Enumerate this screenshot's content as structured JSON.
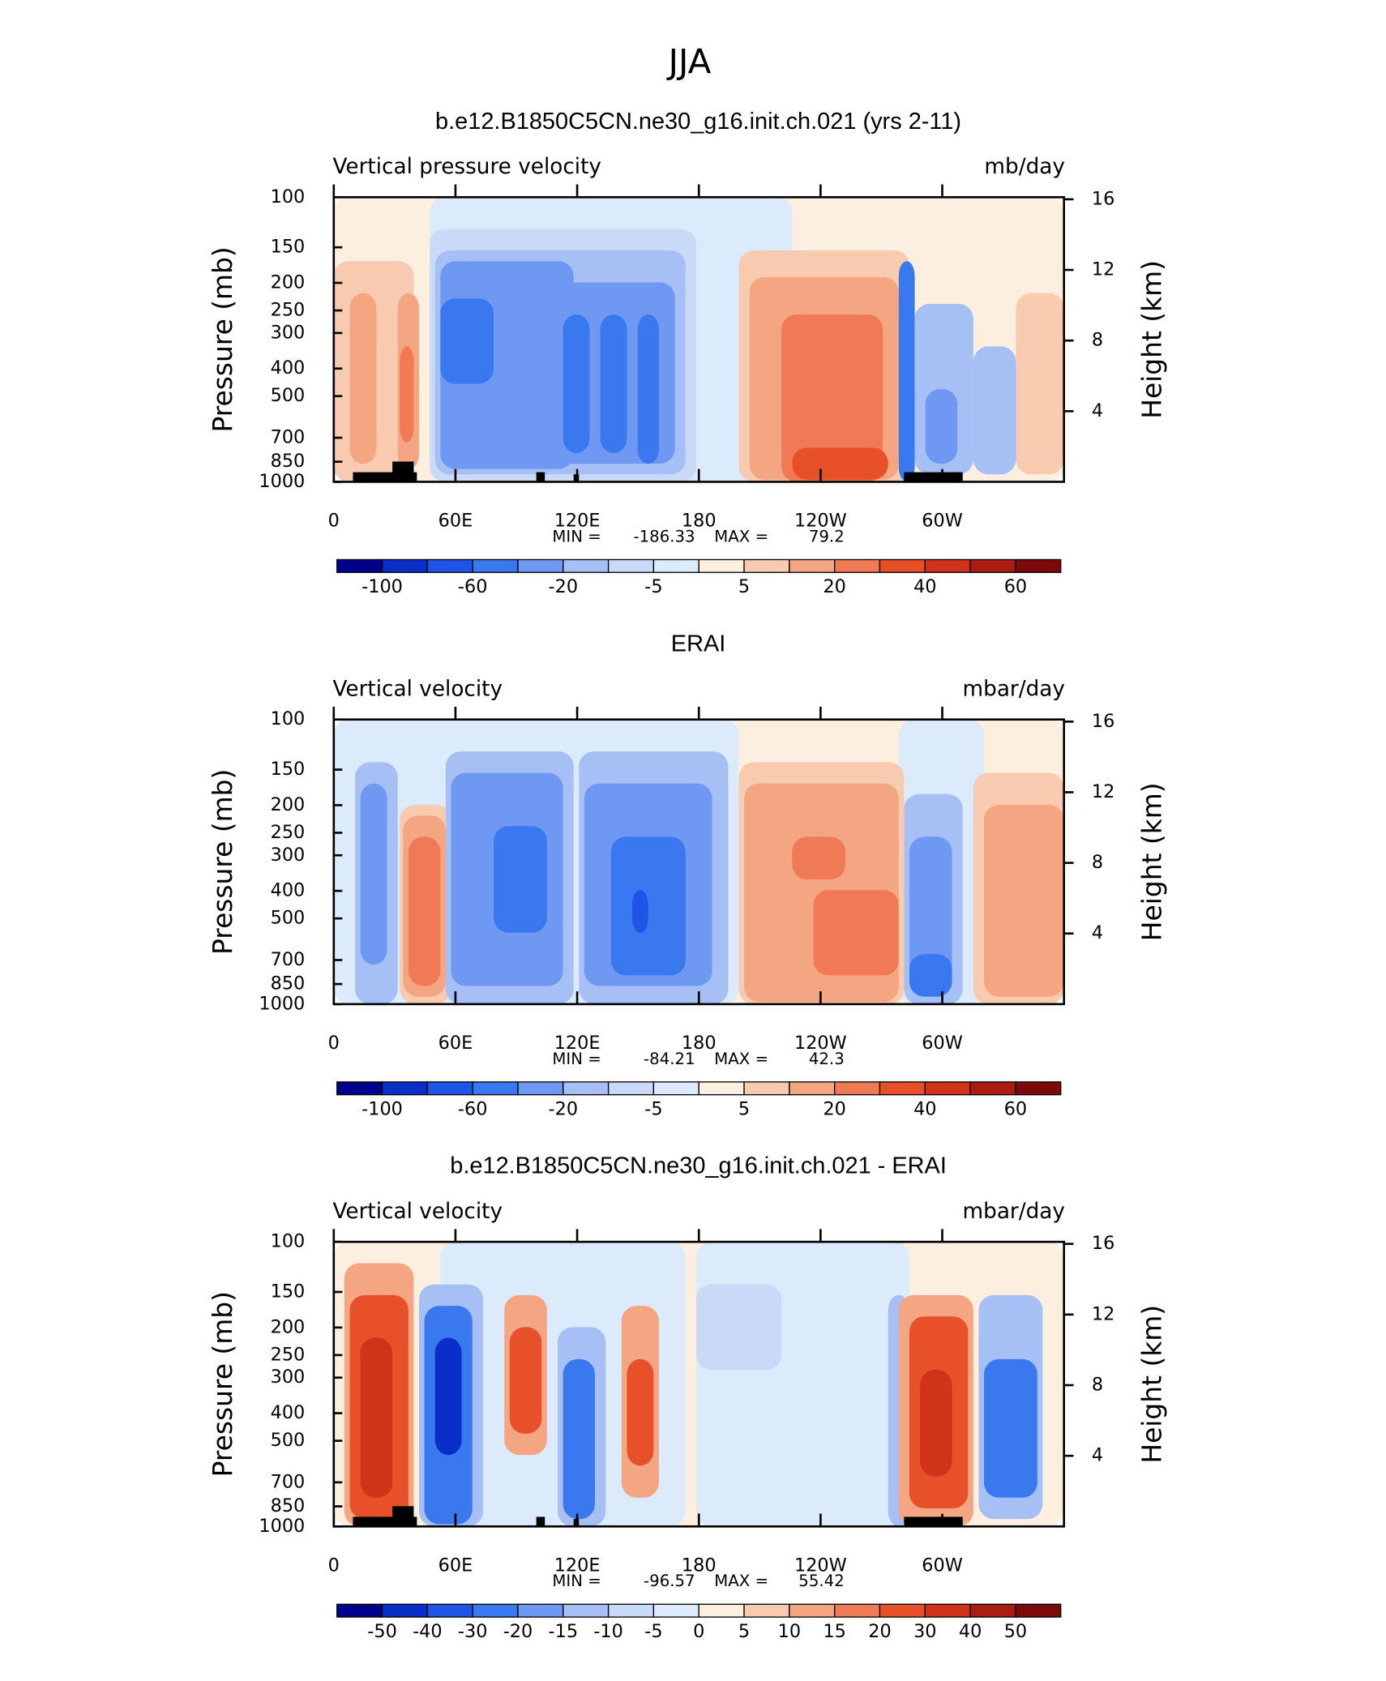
{
  "title": "JJA",
  "chart_data": [
    {
      "type": "contour",
      "subtitle": "b.e12.B1850C5CN.ne30_g16.init.ch.021 (yrs 2-11)",
      "long_name": "Vertical pressure velocity",
      "units": "mb/day",
      "ylabel": "Pressure (mb)",
      "y2label": "Height (km)",
      "xlim": [
        0,
        360
      ],
      "xticks": [
        0,
        {
          "value": 60,
          "label": "60E"
        },
        {
          "value": 120,
          "label": "120E"
        },
        180,
        {
          "value": 240,
          "label": "120W"
        },
        {
          "value": 300,
          "label": "60W"
        }
      ],
      "ylim": [
        1000,
        100
      ],
      "log_y": true,
      "yticks": [
        100,
        150,
        200,
        250,
        300,
        400,
        500,
        700,
        850,
        1000
      ],
      "y2ticks": [
        16,
        12,
        8,
        4
      ],
      "min_label": "MIN =",
      "min": -186.33,
      "max_label": "MAX =",
      "max": 79.2,
      "colorbar": {
        "colors": [
          "#00008c",
          "#0a2ec8",
          "#1f54e6",
          "#3a78f0",
          "#6e98f2",
          "#a6bff5",
          "#c8daf7",
          "#dcebfb",
          "#fdefdf",
          "#f8cbb0",
          "#f4a582",
          "#ef7a55",
          "#e8502a",
          "#d0331a",
          "#ab1d12",
          "#7c0a0a"
        ],
        "labels": [
          -100,
          null,
          -60,
          null,
          -20,
          null,
          -5,
          null,
          5,
          null,
          20,
          null,
          40,
          null,
          60
        ]
      }
    },
    {
      "type": "contour",
      "subtitle": "ERAI",
      "long_name": "Vertical velocity",
      "units": "mbar/day",
      "ylabel": "Pressure (mb)",
      "y2label": "Height (km)",
      "xlim": [
        0,
        360
      ],
      "xticks": [
        0,
        {
          "value": 60,
          "label": "60E"
        },
        {
          "value": 120,
          "label": "120E"
        },
        180,
        {
          "value": 240,
          "label": "120W"
        },
        {
          "value": 300,
          "label": "60W"
        }
      ],
      "ylim": [
        1000,
        100
      ],
      "log_y": true,
      "yticks": [
        100,
        150,
        200,
        250,
        300,
        400,
        500,
        700,
        850,
        1000
      ],
      "y2ticks": [
        16,
        12,
        8,
        4
      ],
      "min_label": "MIN =",
      "min": -84.21,
      "max_label": "MAX =",
      "max": 42.3,
      "colorbar": {
        "colors": [
          "#00008c",
          "#0a2ec8",
          "#1f54e6",
          "#3a78f0",
          "#6e98f2",
          "#a6bff5",
          "#c8daf7",
          "#dcebfb",
          "#fdefdf",
          "#f8cbb0",
          "#f4a582",
          "#ef7a55",
          "#e8502a",
          "#d0331a",
          "#ab1d12",
          "#7c0a0a"
        ],
        "labels": [
          -100,
          null,
          -60,
          null,
          -20,
          null,
          -5,
          null,
          5,
          null,
          20,
          null,
          40,
          null,
          60
        ]
      }
    },
    {
      "type": "contour",
      "subtitle": "b.e12.B1850C5CN.ne30_g16.init.ch.021 - ERAI",
      "long_name": "Vertical velocity",
      "units": "mbar/day",
      "ylabel": "Pressure (mb)",
      "y2label": "Height (km)",
      "xlim": [
        0,
        360
      ],
      "xticks": [
        0,
        {
          "value": 60,
          "label": "60E"
        },
        {
          "value": 120,
          "label": "120E"
        },
        180,
        {
          "value": 240,
          "label": "120W"
        },
        {
          "value": 300,
          "label": "60W"
        }
      ],
      "ylim": [
        1000,
        100
      ],
      "log_y": true,
      "yticks": [
        100,
        150,
        200,
        250,
        300,
        400,
        500,
        700,
        850,
        1000
      ],
      "y2ticks": [
        16,
        12,
        8,
        4
      ],
      "min_label": "MIN =",
      "min": -96.57,
      "max_label": "MAX =",
      "max": 55.42,
      "colorbar": {
        "colors": [
          "#00008c",
          "#0a2ec8",
          "#1f54e6",
          "#3a78f0",
          "#6e98f2",
          "#a6bff5",
          "#c8daf7",
          "#dcebfb",
          "#fdefdf",
          "#f8cbb0",
          "#f4a582",
          "#ef7a55",
          "#e8502a",
          "#d0331a",
          "#ab1d12",
          "#7c0a0a"
        ],
        "labels": [
          -50,
          -40,
          -30,
          -20,
          -15,
          -10,
          -5,
          0,
          5,
          10,
          15,
          20,
          30,
          40,
          50
        ]
      }
    }
  ]
}
